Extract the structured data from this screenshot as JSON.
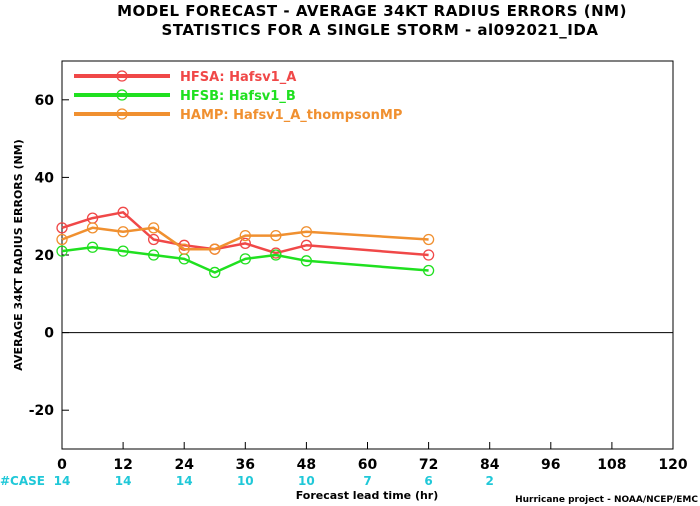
{
  "chart_data": {
    "type": "line",
    "title": "MODEL FORECAST - AVERAGE 34KT RADIUS ERRORS (NM)",
    "subtitle": "STATISTICS FOR A SINGLE STORM - al092021_IDA",
    "xlabel": "Forecast lead time (hr)",
    "ylabel": "AVERAGE 34KT RADIUS ERRORS (NM)",
    "xlim": [
      0,
      120
    ],
    "ylim": [
      -30,
      70
    ],
    "x_ticks": [
      0,
      12,
      24,
      36,
      48,
      60,
      72,
      84,
      96,
      108,
      120
    ],
    "y_ticks": [
      -20,
      0,
      20,
      40,
      60
    ],
    "zero_line": true,
    "grid": false,
    "legend_position": "top-left",
    "series": [
      {
        "name": "HFSA: Hafsv1_A",
        "color": "#f04848",
        "x": [
          0,
          6,
          12,
          18,
          24,
          30,
          36,
          42,
          48,
          72
        ],
        "y": [
          27,
          29.5,
          31,
          24,
          22.5,
          21.5,
          23,
          20.5,
          22.5,
          20
        ]
      },
      {
        "name": "HFSB: Hafsv1_B",
        "color": "#20e020",
        "x": [
          0,
          6,
          12,
          18,
          24,
          30,
          36,
          42,
          48,
          72
        ],
        "y": [
          21,
          22,
          21,
          20,
          19,
          15.5,
          19,
          20,
          18.5,
          16
        ]
      },
      {
        "name": "HAMP: Hafsv1_A_thompsonMP",
        "color": "#f09030",
        "x": [
          0,
          6,
          12,
          18,
          24,
          30,
          36,
          42,
          48,
          72
        ],
        "y": [
          24,
          27,
          26,
          27,
          21.5,
          21.5,
          25,
          25,
          26,
          24
        ]
      }
    ],
    "cases": {
      "label": "#CASE",
      "color": "#20c8d8",
      "x": [
        0,
        12,
        24,
        36,
        48,
        60,
        72,
        84
      ],
      "values": [
        "14",
        "14",
        "14",
        "10",
        "10",
        "7",
        "6",
        "2"
      ]
    }
  },
  "credit": "Hurricane project - NOAA/NCEP/EMC"
}
